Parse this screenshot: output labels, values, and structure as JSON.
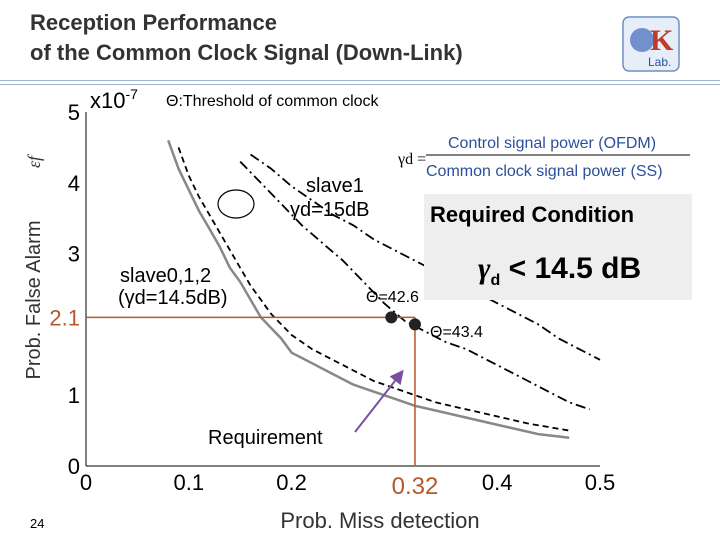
{
  "header": {
    "title_line1": "Reception Performance",
    "title_line2": "of the Common Clock Signal (Down-Link)"
  },
  "logo": {
    "letters": "K",
    "subtext": "Lab."
  },
  "page_number": "24",
  "chart_data": {
    "type": "line",
    "xlabel": "Prob. Miss detection",
    "ylabel": "Prob. False Alarm",
    "ylabel_symbol": "εf",
    "y_multiplier": "x10",
    "y_multiplier_exp": "-7",
    "xlim": [
      0,
      0.5
    ],
    "ylim": [
      0,
      5
    ],
    "x_ticks": [
      "0",
      "0.1",
      "0.2",
      "0.32",
      "0.4",
      "0.5"
    ],
    "x_tick_values": [
      0,
      0.1,
      0.2,
      0.32,
      0.4,
      0.5
    ],
    "y_ticks": [
      "0",
      "1",
      "2.1",
      "3",
      "4",
      "5"
    ],
    "y_tick_values": [
      0,
      1,
      2.1,
      3,
      4,
      5
    ],
    "grid": false,
    "series": [
      {
        "style": "solid-gray",
        "x": [
          0.08,
          0.09,
          0.1,
          0.11,
          0.12,
          0.13,
          0.14,
          0.15,
          0.16,
          0.17,
          0.18,
          0.19,
          0.2,
          0.22,
          0.24,
          0.26,
          0.28,
          0.3,
          0.32,
          0.35,
          0.38,
          0.41,
          0.44,
          0.47
        ],
        "y": [
          4.6,
          4.2,
          3.9,
          3.6,
          3.35,
          3.1,
          2.8,
          2.6,
          2.35,
          2.1,
          1.95,
          1.8,
          1.6,
          1.45,
          1.3,
          1.15,
          1.05,
          0.95,
          0.85,
          0.75,
          0.65,
          0.55,
          0.45,
          0.4
        ]
      },
      {
        "style": "dashed-black",
        "x": [
          0.09,
          0.1,
          0.11,
          0.12,
          0.13,
          0.14,
          0.15,
          0.16,
          0.17,
          0.18,
          0.19,
          0.2,
          0.22,
          0.24,
          0.26,
          0.28,
          0.3,
          0.32,
          0.34,
          0.37,
          0.4,
          0.43,
          0.47
        ],
        "y": [
          4.5,
          4.1,
          3.8,
          3.55,
          3.3,
          3.05,
          2.8,
          2.55,
          2.35,
          2.15,
          2.0,
          1.85,
          1.65,
          1.5,
          1.35,
          1.2,
          1.1,
          1.0,
          0.9,
          0.8,
          0.7,
          0.6,
          0.5
        ]
      },
      {
        "style": "dashdot-black",
        "x": [
          0.15,
          0.17,
          0.19,
          0.21,
          0.23,
          0.25,
          0.27,
          0.29,
          0.31,
          0.33,
          0.35,
          0.37,
          0.39,
          0.41,
          0.43,
          0.45,
          0.47,
          0.49
        ],
        "y": [
          4.3,
          4.0,
          3.7,
          3.4,
          3.15,
          2.9,
          2.6,
          2.3,
          2.05,
          1.9,
          1.75,
          1.65,
          1.5,
          1.35,
          1.2,
          1.05,
          0.9,
          0.8
        ]
      },
      {
        "style": "dashdot-black",
        "x": [
          0.16,
          0.18,
          0.2,
          0.22,
          0.24,
          0.26,
          0.28,
          0.3,
          0.32,
          0.34,
          0.36,
          0.38,
          0.4,
          0.42,
          0.44,
          0.46,
          0.48,
          0.5
        ],
        "y": [
          4.4,
          4.2,
          3.95,
          3.75,
          3.55,
          3.4,
          3.2,
          3.05,
          2.9,
          2.75,
          2.6,
          2.45,
          2.3,
          2.15,
          2.0,
          1.8,
          1.65,
          1.5
        ]
      }
    ],
    "dots": [
      {
        "label": "Θ=42.6",
        "x": 0.297,
        "y": 2.1
      },
      {
        "label": "Θ=43.4",
        "x": 0.32,
        "y": 2.0
      }
    ],
    "requirement": {
      "label": "Requirement",
      "x": 0.32,
      "y": 2.1
    },
    "annotations": {
      "threshold_note": "Θ:Threshold of common clock",
      "slave1_line1": "slave1",
      "slave1_line2": "γd=15dB",
      "slave012_line1": "slave0,1,2",
      "slave012_line2": "(γd=14.5dB)",
      "gamma_symbol": "γd =",
      "fraction_num": "Control signal power (OFDM)",
      "fraction_den": "Common clock signal power (SS)"
    },
    "required_condition": {
      "title": "Required Condition",
      "gamma": "γ",
      "sub": "d",
      "rest": " < 14.5 dB"
    },
    "colors": {
      "requirement_line": "#b5582a",
      "arrow": "#7a4fa3",
      "solid_series": "#888888",
      "dashed_series": "#000000"
    }
  }
}
